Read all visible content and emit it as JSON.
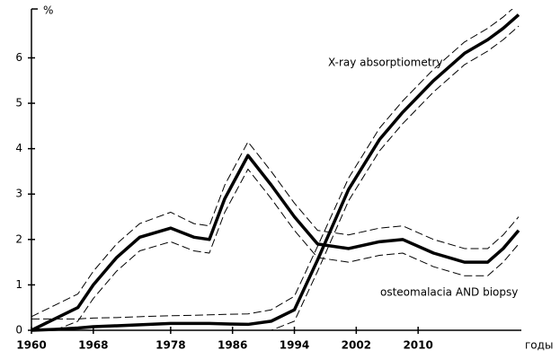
{
  "chart_data": {
    "type": "line",
    "y_label": "%",
    "x_label": "годы",
    "x": [
      1960,
      1963,
      1966,
      1968,
      1971,
      1974,
      1978,
      1981,
      1983,
      1985,
      1988,
      1991,
      1994,
      1997,
      2001,
      2005,
      2008,
      2012,
      2016,
      2019,
      2021,
      2023
    ],
    "series": [
      {
        "name": "osteomalacia AND biopsy",
        "color": "#000000",
        "values": [
          0,
          0.25,
          0.5,
          1.0,
          1.6,
          2.05,
          2.25,
          2.05,
          2.0,
          2.9,
          3.85,
          3.2,
          2.5,
          1.9,
          1.8,
          1.95,
          2.0,
          1.7,
          1.5,
          1.5,
          1.8,
          2.2
        ],
        "upper": [
          0.3,
          0.55,
          0.8,
          1.3,
          1.9,
          2.35,
          2.6,
          2.35,
          2.3,
          3.2,
          4.15,
          3.5,
          2.8,
          2.2,
          2.1,
          2.25,
          2.3,
          2.0,
          1.8,
          1.8,
          2.1,
          2.5
        ],
        "lower": [
          0,
          0,
          0.2,
          0.7,
          1.3,
          1.75,
          1.95,
          1.75,
          1.7,
          2.6,
          3.55,
          2.9,
          2.2,
          1.6,
          1.5,
          1.65,
          1.7,
          1.4,
          1.2,
          1.2,
          1.5,
          1.9
        ]
      },
      {
        "name": "X-ray absorptiometry",
        "color": "#000000",
        "values": [
          0,
          0.02,
          0.05,
          0.08,
          0.1,
          0.12,
          0.15,
          0.15,
          0.15,
          0.14,
          0.13,
          0.2,
          0.45,
          1.55,
          3.1,
          4.2,
          4.8,
          5.5,
          6.1,
          6.4,
          6.65,
          6.95
        ],
        "upper": [
          0.25,
          0.25,
          0.25,
          0.27,
          0.28,
          0.3,
          0.32,
          0.33,
          0.34,
          0.35,
          0.36,
          0.45,
          0.75,
          1.85,
          3.35,
          4.45,
          5.05,
          5.75,
          6.35,
          6.65,
          6.9,
          7.2
        ],
        "lower": [
          0,
          0,
          0,
          0,
          0,
          0,
          0,
          0,
          0,
          0,
          0,
          0,
          0.2,
          1.3,
          2.85,
          3.95,
          4.55,
          5.25,
          5.85,
          6.15,
          6.4,
          6.7
        ]
      }
    ],
    "xlim": [
      1960,
      2023
    ],
    "xticks": [
      1960,
      1968,
      1978,
      1986,
      1994,
      2002,
      2010
    ],
    "ylim": [
      0,
      6.8
    ],
    "yticks": [
      0,
      1,
      2,
      3,
      4,
      5,
      6
    ]
  }
}
